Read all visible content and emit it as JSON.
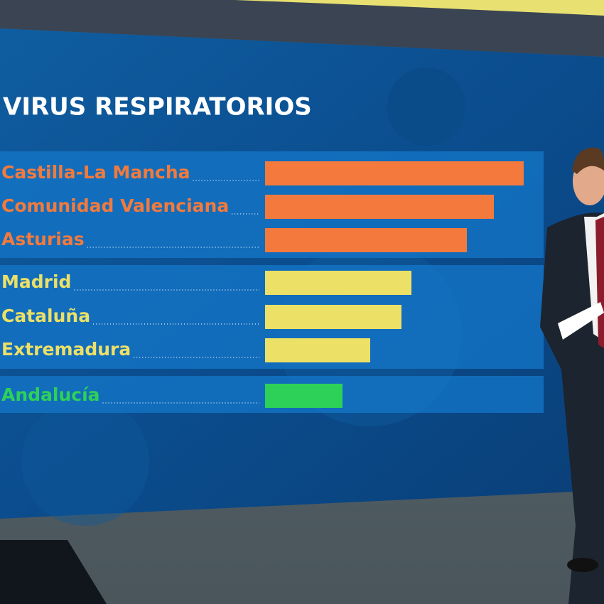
{
  "chart_data": {
    "type": "bar",
    "orientation": "horizontal",
    "title": "VIRUS RESPIRATORIOS",
    "categories": [
      "Castilla-La Mancha",
      "Comunidad Valenciana",
      "Asturias",
      "Madrid",
      "Cataluña",
      "Extremadura",
      "Andalucía"
    ],
    "values": [
      364,
      322,
      284,
      206,
      192,
      148,
      109
    ],
    "colors": [
      "#f37a3c",
      "#f37a3c",
      "#f37a3c",
      "#ece066",
      "#ece066",
      "#ece066",
      "#2ed158"
    ]
  }
}
